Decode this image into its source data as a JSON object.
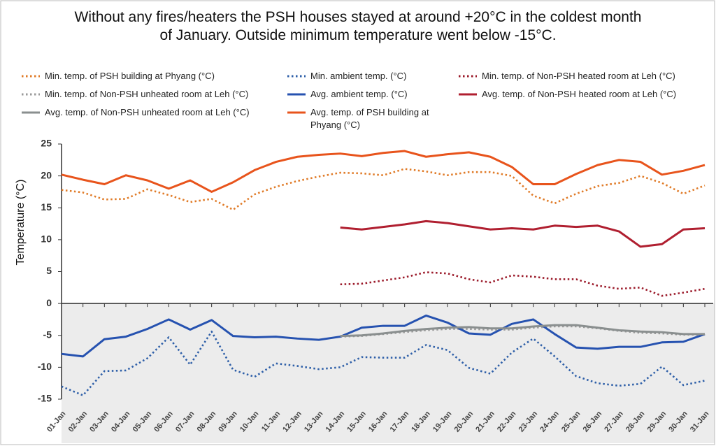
{
  "chart_data": {
    "type": "line",
    "title": [
      "Without any fires/heaters the PSH houses stayed at around +20°C in the coldest month",
      "of January. Outside minimum temperature went below -15°C."
    ],
    "y_label": "Temperature (°C)",
    "categories": [
      "01-Jan",
      "02-Jan",
      "03-Jan",
      "04-Jan",
      "05-Jan",
      "06-Jan",
      "07-Jan",
      "08-Jan",
      "09-Jan",
      "10-Jan",
      "11-Jan",
      "12-Jan",
      "13-Jan",
      "14-Jan",
      "15-Jan",
      "16-Jan",
      "17-Jan",
      "18-Jan",
      "19-Jan",
      "20-Jan",
      "21-Jan",
      "22-Jan",
      "23-Jan",
      "24-Jan",
      "25-Jan",
      "26-Jan",
      "27-Jan",
      "28-Jan",
      "29-Jan",
      "30-Jan",
      "31-Jan"
    ],
    "ylim": [
      -15,
      25
    ],
    "yticks": [
      -15,
      -10,
      -5,
      0,
      5,
      10,
      15,
      20,
      25
    ],
    "series": [
      {
        "name": "Min. temp. of PSH building at Phyang (°C)",
        "color": "#e07b28",
        "dotted": true,
        "values": [
          17.8,
          17.4,
          16.3,
          16.4,
          17.9,
          17.0,
          15.9,
          16.4,
          14.7,
          17.1,
          18.3,
          19.2,
          19.9,
          20.5,
          20.4,
          20.1,
          21.1,
          20.7,
          20.1,
          20.6,
          20.6,
          20.0,
          16.9,
          15.7,
          17.2,
          18.4,
          18.9,
          20.0,
          18.9,
          17.2,
          18.5
        ]
      },
      {
        "name": "Min. ambient temp. (°C)",
        "color": "#2e5fa8",
        "dotted": true,
        "values": [
          -13.0,
          -14.4,
          -10.6,
          -10.5,
          -8.6,
          -5.3,
          -9.6,
          -4.4,
          -10.4,
          -11.5,
          -9.4,
          -9.8,
          -10.3,
          -10.0,
          -8.4,
          -8.5,
          -8.5,
          -6.5,
          -7.3,
          -10.1,
          -11.0,
          -7.7,
          -5.5,
          -8.3,
          -11.4,
          -12.5,
          -12.9,
          -12.6,
          -9.9,
          -12.8,
          -12.1
        ]
      },
      {
        "name": "Min. temp. of Non-PSH heated room at Leh (°C)",
        "color": "#9b1a2a",
        "dotted": true,
        "values": [
          null,
          null,
          null,
          null,
          null,
          null,
          null,
          null,
          null,
          null,
          null,
          null,
          null,
          3.0,
          3.1,
          3.6,
          4.1,
          4.9,
          4.7,
          3.8,
          3.3,
          4.4,
          4.2,
          3.8,
          3.8,
          2.8,
          2.3,
          2.5,
          1.2,
          1.7,
          2.3
        ]
      },
      {
        "name": "Min. temp. of Non-PSH unheated room at Leh (°C)",
        "color": "#9a9a9a",
        "dotted": true,
        "values": [
          null,
          null,
          null,
          null,
          null,
          null,
          null,
          null,
          null,
          null,
          null,
          null,
          null,
          -5.2,
          -5.1,
          -4.8,
          -4.5,
          -4.2,
          -4.0,
          -4.0,
          -4.1,
          -4.1,
          -3.8,
          -3.6,
          -3.6,
          -3.9,
          -4.3,
          -4.6,
          -4.7,
          -4.9,
          -4.9
        ]
      },
      {
        "name": "Avg. ambient temp. (°C)",
        "color": "#2652b0",
        "dotted": false,
        "values": [
          -7.9,
          -8.3,
          -5.6,
          -5.2,
          -4.0,
          -2.5,
          -4.1,
          -2.6,
          -5.1,
          -5.3,
          -5.2,
          -5.5,
          -5.7,
          -5.2,
          -3.8,
          -3.5,
          -3.5,
          -1.9,
          -3.0,
          -4.7,
          -4.9,
          -3.2,
          -2.5,
          -4.8,
          -6.9,
          -7.1,
          -6.8,
          -6.8,
          -6.1,
          -6.0,
          -4.8
        ]
      },
      {
        "name": "Avg. temp. of Non-PSH heated room at Leh (°C)",
        "color": "#b01f30",
        "dotted": false,
        "values": [
          null,
          null,
          null,
          null,
          null,
          null,
          null,
          null,
          null,
          null,
          null,
          null,
          null,
          11.9,
          11.6,
          12.0,
          12.4,
          12.9,
          12.6,
          12.1,
          11.6,
          11.8,
          11.6,
          12.2,
          12.0,
          12.2,
          11.3,
          8.9,
          9.3,
          11.6,
          11.8
        ]
      },
      {
        "name": "Avg. temp. of Non-PSH unheated room at Leh (°C)",
        "color": "#8a8f8f",
        "dotted": false,
        "values": [
          null,
          null,
          null,
          null,
          null,
          null,
          null,
          null,
          null,
          null,
          null,
          null,
          null,
          -5.1,
          -5.0,
          -4.7,
          -4.3,
          -4.0,
          -3.8,
          -3.7,
          -3.9,
          -3.9,
          -3.6,
          -3.4,
          -3.4,
          -3.8,
          -4.2,
          -4.4,
          -4.5,
          -4.8,
          -4.8
        ]
      },
      {
        "name": "Avg. temp. of PSH building at Phyang (°C)",
        "color": "#e8541c",
        "dotted": false,
        "values": [
          20.2,
          19.4,
          18.7,
          20.1,
          19.3,
          18.0,
          19.3,
          17.5,
          19.0,
          20.9,
          22.2,
          23.0,
          23.3,
          23.5,
          23.1,
          23.6,
          23.9,
          23.0,
          23.4,
          23.7,
          23.0,
          21.4,
          18.7,
          18.7,
          20.3,
          21.7,
          22.5,
          22.2,
          20.2,
          20.8,
          21.7
        ]
      }
    ]
  }
}
